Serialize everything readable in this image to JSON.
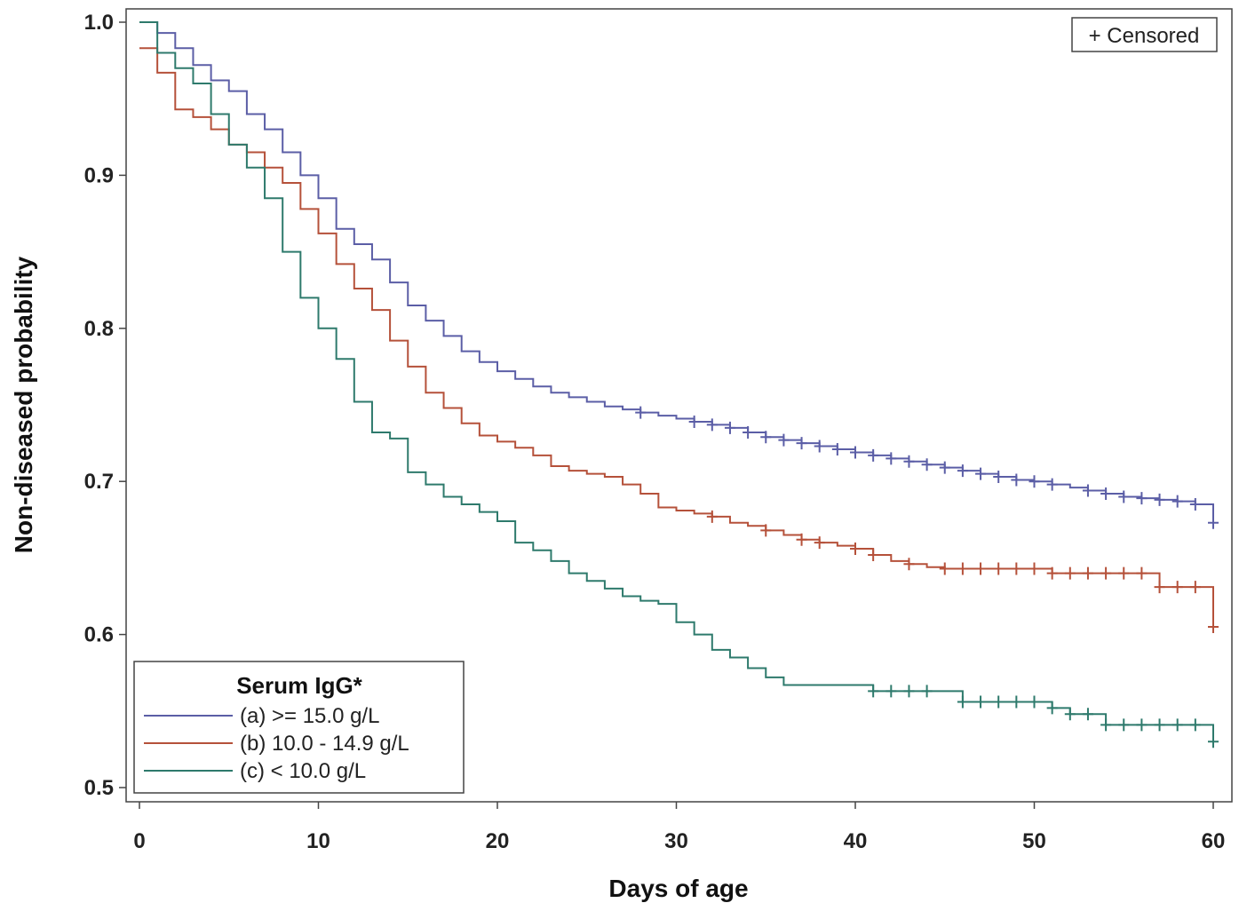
{
  "chart_data": {
    "type": "line",
    "subtype": "kaplan-meier step",
    "xlabel": "Days of age",
    "ylabel": "Non-diseased probability",
    "xlim": [
      0,
      60
    ],
    "ylim": [
      0.5,
      1.0
    ],
    "x_ticks": [
      "0",
      "10",
      "20",
      "30",
      "40",
      "50",
      "60"
    ],
    "y_ticks": [
      "0.5",
      "0.6",
      "0.7",
      "0.8",
      "0.9",
      "1.0"
    ],
    "grid": false,
    "censored_label": "+ Censored",
    "legend": {
      "title": "Serum IgG*",
      "placement": "bottom-left"
    },
    "series": [
      {
        "name": "(a) >= 15.0 g/L",
        "color": "#5b5ea6",
        "steps": [
          [
            0,
            1.0
          ],
          [
            1,
            0.993
          ],
          [
            2,
            0.983
          ],
          [
            3,
            0.972
          ],
          [
            4,
            0.962
          ],
          [
            5,
            0.955
          ],
          [
            6,
            0.94
          ],
          [
            7,
            0.93
          ],
          [
            8,
            0.915
          ],
          [
            9,
            0.9
          ],
          [
            10,
            0.885
          ],
          [
            11,
            0.865
          ],
          [
            12,
            0.855
          ],
          [
            13,
            0.845
          ],
          [
            14,
            0.83
          ],
          [
            15,
            0.815
          ],
          [
            16,
            0.805
          ],
          [
            17,
            0.795
          ],
          [
            18,
            0.785
          ],
          [
            19,
            0.778
          ],
          [
            20,
            0.772
          ],
          [
            21,
            0.767
          ],
          [
            22,
            0.762
          ],
          [
            23,
            0.758
          ],
          [
            24,
            0.755
          ],
          [
            25,
            0.752
          ],
          [
            26,
            0.749
          ],
          [
            27,
            0.747
          ],
          [
            28,
            0.745
          ],
          [
            29,
            0.743
          ],
          [
            30,
            0.741
          ],
          [
            31,
            0.739
          ],
          [
            32,
            0.737
          ],
          [
            33,
            0.735
          ],
          [
            34,
            0.732
          ],
          [
            35,
            0.729
          ],
          [
            36,
            0.727
          ],
          [
            37,
            0.725
          ],
          [
            38,
            0.723
          ],
          [
            39,
            0.721
          ],
          [
            40,
            0.719
          ],
          [
            41,
            0.717
          ],
          [
            42,
            0.715
          ],
          [
            43,
            0.713
          ],
          [
            44,
            0.711
          ],
          [
            45,
            0.709
          ],
          [
            46,
            0.707
          ],
          [
            47,
            0.705
          ],
          [
            48,
            0.703
          ],
          [
            49,
            0.701
          ],
          [
            50,
            0.7
          ],
          [
            51,
            0.698
          ],
          [
            52,
            0.696
          ],
          [
            53,
            0.694
          ],
          [
            54,
            0.692
          ],
          [
            55,
            0.69
          ],
          [
            56,
            0.689
          ],
          [
            57,
            0.688
          ],
          [
            58,
            0.687
          ],
          [
            59,
            0.685
          ],
          [
            60,
            0.673
          ]
        ],
        "censored": [
          28,
          31,
          32,
          33,
          34,
          35,
          36,
          37,
          38,
          39,
          40,
          41,
          42,
          43,
          44,
          45,
          46,
          47,
          48,
          49,
          50,
          51,
          53,
          54,
          55,
          56,
          57,
          58,
          59,
          60
        ]
      },
      {
        "name": "(b) 10.0 - 14.9 g/L",
        "color": "#b5513a",
        "steps": [
          [
            0,
            0.983
          ],
          [
            1,
            0.967
          ],
          [
            2,
            0.943
          ],
          [
            3,
            0.938
          ],
          [
            4,
            0.93
          ],
          [
            5,
            0.92
          ],
          [
            6,
            0.915
          ],
          [
            7,
            0.905
          ],
          [
            8,
            0.895
          ],
          [
            9,
            0.878
          ],
          [
            10,
            0.862
          ],
          [
            11,
            0.842
          ],
          [
            12,
            0.826
          ],
          [
            13,
            0.812
          ],
          [
            14,
            0.792
          ],
          [
            15,
            0.775
          ],
          [
            16,
            0.758
          ],
          [
            17,
            0.748
          ],
          [
            18,
            0.738
          ],
          [
            19,
            0.73
          ],
          [
            20,
            0.726
          ],
          [
            21,
            0.722
          ],
          [
            22,
            0.717
          ],
          [
            23,
            0.71
          ],
          [
            24,
            0.707
          ],
          [
            25,
            0.705
          ],
          [
            26,
            0.703
          ],
          [
            27,
            0.698
          ],
          [
            28,
            0.692
          ],
          [
            29,
            0.683
          ],
          [
            30,
            0.681
          ],
          [
            31,
            0.679
          ],
          [
            32,
            0.677
          ],
          [
            33,
            0.673
          ],
          [
            34,
            0.671
          ],
          [
            35,
            0.668
          ],
          [
            36,
            0.665
          ],
          [
            37,
            0.662
          ],
          [
            38,
            0.66
          ],
          [
            39,
            0.658
          ],
          [
            40,
            0.656
          ],
          [
            41,
            0.652
          ],
          [
            42,
            0.648
          ],
          [
            43,
            0.646
          ],
          [
            44,
            0.644
          ],
          [
            45,
            0.643
          ],
          [
            46,
            0.643
          ],
          [
            47,
            0.643
          ],
          [
            48,
            0.643
          ],
          [
            49,
            0.643
          ],
          [
            50,
            0.643
          ],
          [
            51,
            0.64
          ],
          [
            52,
            0.64
          ],
          [
            53,
            0.64
          ],
          [
            54,
            0.64
          ],
          [
            55,
            0.64
          ],
          [
            56,
            0.64
          ],
          [
            57,
            0.631
          ],
          [
            58,
            0.631
          ],
          [
            59,
            0.631
          ],
          [
            60,
            0.605
          ]
        ],
        "censored": [
          32,
          35,
          37,
          38,
          40,
          41,
          43,
          45,
          46,
          47,
          48,
          49,
          50,
          51,
          52,
          53,
          54,
          55,
          56,
          57,
          58,
          59,
          60
        ]
      },
      {
        "name": "(c) < 10.0 g/L",
        "color": "#2e7a6c",
        "steps": [
          [
            0,
            1.0
          ],
          [
            1,
            0.98
          ],
          [
            2,
            0.97
          ],
          [
            3,
            0.96
          ],
          [
            4,
            0.94
          ],
          [
            5,
            0.92
          ],
          [
            6,
            0.905
          ],
          [
            7,
            0.885
          ],
          [
            8,
            0.85
          ],
          [
            9,
            0.82
          ],
          [
            10,
            0.8
          ],
          [
            11,
            0.78
          ],
          [
            12,
            0.752
          ],
          [
            13,
            0.732
          ],
          [
            14,
            0.728
          ],
          [
            15,
            0.706
          ],
          [
            16,
            0.698
          ],
          [
            17,
            0.69
          ],
          [
            18,
            0.685
          ],
          [
            19,
            0.68
          ],
          [
            20,
            0.674
          ],
          [
            21,
            0.66
          ],
          [
            22,
            0.655
          ],
          [
            23,
            0.648
          ],
          [
            24,
            0.64
          ],
          [
            25,
            0.635
          ],
          [
            26,
            0.63
          ],
          [
            27,
            0.625
          ],
          [
            28,
            0.622
          ],
          [
            29,
            0.62
          ],
          [
            30,
            0.608
          ],
          [
            31,
            0.6
          ],
          [
            32,
            0.59
          ],
          [
            33,
            0.585
          ],
          [
            34,
            0.578
          ],
          [
            35,
            0.572
          ],
          [
            36,
            0.567
          ],
          [
            37,
            0.567
          ],
          [
            38,
            0.567
          ],
          [
            39,
            0.567
          ],
          [
            40,
            0.567
          ],
          [
            41,
            0.563
          ],
          [
            42,
            0.563
          ],
          [
            43,
            0.563
          ],
          [
            44,
            0.563
          ],
          [
            45,
            0.563
          ],
          [
            46,
            0.556
          ],
          [
            47,
            0.556
          ],
          [
            48,
            0.556
          ],
          [
            49,
            0.556
          ],
          [
            50,
            0.556
          ],
          [
            51,
            0.552
          ],
          [
            52,
            0.548
          ],
          [
            53,
            0.548
          ],
          [
            54,
            0.541
          ],
          [
            55,
            0.541
          ],
          [
            56,
            0.541
          ],
          [
            57,
            0.541
          ],
          [
            58,
            0.541
          ],
          [
            59,
            0.541
          ],
          [
            60,
            0.53
          ]
        ],
        "censored": [
          41,
          42,
          43,
          44,
          46,
          47,
          48,
          49,
          50,
          51,
          52,
          53,
          54,
          55,
          56,
          57,
          58,
          59,
          60
        ]
      }
    ]
  }
}
